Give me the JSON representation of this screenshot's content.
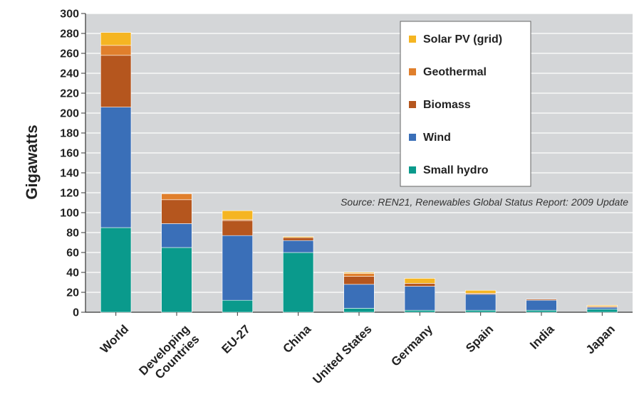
{
  "chart_data": {
    "type": "bar",
    "stacked": true,
    "ylabel": "Gigawatts",
    "ylim": [
      0,
      300
    ],
    "ytick_step": 20,
    "grid": true,
    "legend_position": "top-right",
    "annotation": "Source: REN21, Renewables Global Status Report: 2009 Update",
    "categories": [
      "World",
      "Developing Countries",
      "EU-27",
      "China",
      "United States",
      "Germany",
      "Spain",
      "India",
      "Japan"
    ],
    "category_lines": [
      [
        "World"
      ],
      [
        "Developing",
        "Countries"
      ],
      [
        "EU-27"
      ],
      [
        "China"
      ],
      [
        "United States"
      ],
      [
        "Germany"
      ],
      [
        "Spain"
      ],
      [
        "India"
      ],
      [
        "Japan"
      ]
    ],
    "series": [
      {
        "name": "Small hydro",
        "color": "#0a9a8c",
        "values": [
          85,
          65,
          12,
          60,
          4,
          2,
          2,
          2,
          3
        ]
      },
      {
        "name": "Wind",
        "color": "#3a6fb8",
        "values": [
          121,
          24,
          65,
          12,
          24,
          24,
          16,
          10,
          2
        ]
      },
      {
        "name": "Biomass",
        "color": "#b5561e",
        "values": [
          52,
          24,
          15,
          3,
          8,
          3,
          1,
          1,
          0
        ]
      },
      {
        "name": "Geothermal",
        "color": "#e07f2c",
        "values": [
          10,
          6,
          1,
          0,
          3,
          0,
          0,
          0,
          1
        ]
      },
      {
        "name": "Solar PV (grid)",
        "color": "#f5b522",
        "values": [
          13,
          0,
          9,
          1,
          1,
          5,
          3,
          0,
          1
        ]
      }
    ]
  }
}
